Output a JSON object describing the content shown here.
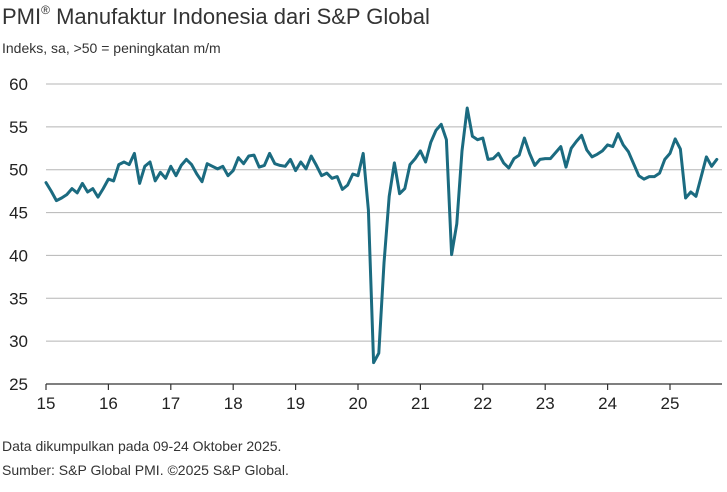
{
  "title": {
    "main": "PMI",
    "sup": "®",
    "rest": " Manufaktur Indonesia dari S&P Global"
  },
  "subtitle": "Indeks, sa, >50 = peningkatan m/m",
  "footer": {
    "line1": "Data dikumpulkan pada 09-24 Oktober 2025.",
    "line2": "Sumber: S&P Global PMI. ©2025 S&P Global."
  },
  "colors": {
    "line": "#1b6b80",
    "grid": "#b5b5b5",
    "axis": "#333333"
  },
  "chart_data": {
    "type": "line",
    "title": "PMI® Manufaktur Indonesia dari S&P Global",
    "ylabel": "Indeks, sa, >50 = peningkatan m/m",
    "xlabel": "",
    "ylim": [
      25,
      60
    ],
    "yticks": [
      25,
      30,
      35,
      40,
      45,
      50,
      55,
      60
    ],
    "xlim": [
      0,
      130
    ],
    "x_ticks": [
      {
        "label": "15",
        "pos": 0
      },
      {
        "label": "16",
        "pos": 12
      },
      {
        "label": "17",
        "pos": 24
      },
      {
        "label": "18",
        "pos": 36
      },
      {
        "label": "19",
        "pos": 48
      },
      {
        "label": "20",
        "pos": 60
      },
      {
        "label": "21",
        "pos": 72
      },
      {
        "label": "22",
        "pos": 84
      },
      {
        "label": "23",
        "pos": 96
      },
      {
        "label": "24",
        "pos": 108
      },
      {
        "label": "25",
        "pos": 120
      }
    ],
    "grid": true,
    "series": [
      {
        "name": "PMI Manufaktur Indonesia",
        "values": [
          48.5,
          47.5,
          46.4,
          46.7,
          47.1,
          47.8,
          47.3,
          48.4,
          47.4,
          47.8,
          46.8,
          47.8,
          48.9,
          48.7,
          50.6,
          50.9,
          50.6,
          51.9,
          48.4,
          50.4,
          50.9,
          48.7,
          49.7,
          49.0,
          50.4,
          49.3,
          50.5,
          51.2,
          50.6,
          49.5,
          48.6,
          50.7,
          50.4,
          50.1,
          50.4,
          49.3,
          49.9,
          51.4,
          50.7,
          51.6,
          51.7,
          50.3,
          50.5,
          51.9,
          50.7,
          50.5,
          50.4,
          51.2,
          49.9,
          50.9,
          50.1,
          51.6,
          50.5,
          49.3,
          49.6,
          49.0,
          49.2,
          47.7,
          48.2,
          49.5,
          49.3,
          51.9,
          45.3,
          27.5,
          28.6,
          39.1,
          46.9,
          50.8,
          47.2,
          47.8,
          50.6,
          51.3,
          52.2,
          50.9,
          53.2,
          54.6,
          55.3,
          53.5,
          40.1,
          43.7,
          52.2,
          57.2,
          53.9,
          53.5,
          53.7,
          51.2,
          51.3,
          51.9,
          50.8,
          50.2,
          51.3,
          51.7,
          53.7,
          51.9,
          50.5,
          51.2,
          51.3,
          51.3,
          52.0,
          52.7,
          50.3,
          52.5,
          53.3,
          54.0,
          52.3,
          51.5,
          51.8,
          52.2,
          52.9,
          52.7,
          54.2,
          52.9,
          52.1,
          50.7,
          49.3,
          48.9,
          49.2,
          49.2,
          49.6,
          51.2,
          51.9,
          53.6,
          52.4,
          46.7,
          47.4,
          46.9,
          49.2,
          51.5,
          50.4,
          51.2
        ]
      }
    ]
  }
}
